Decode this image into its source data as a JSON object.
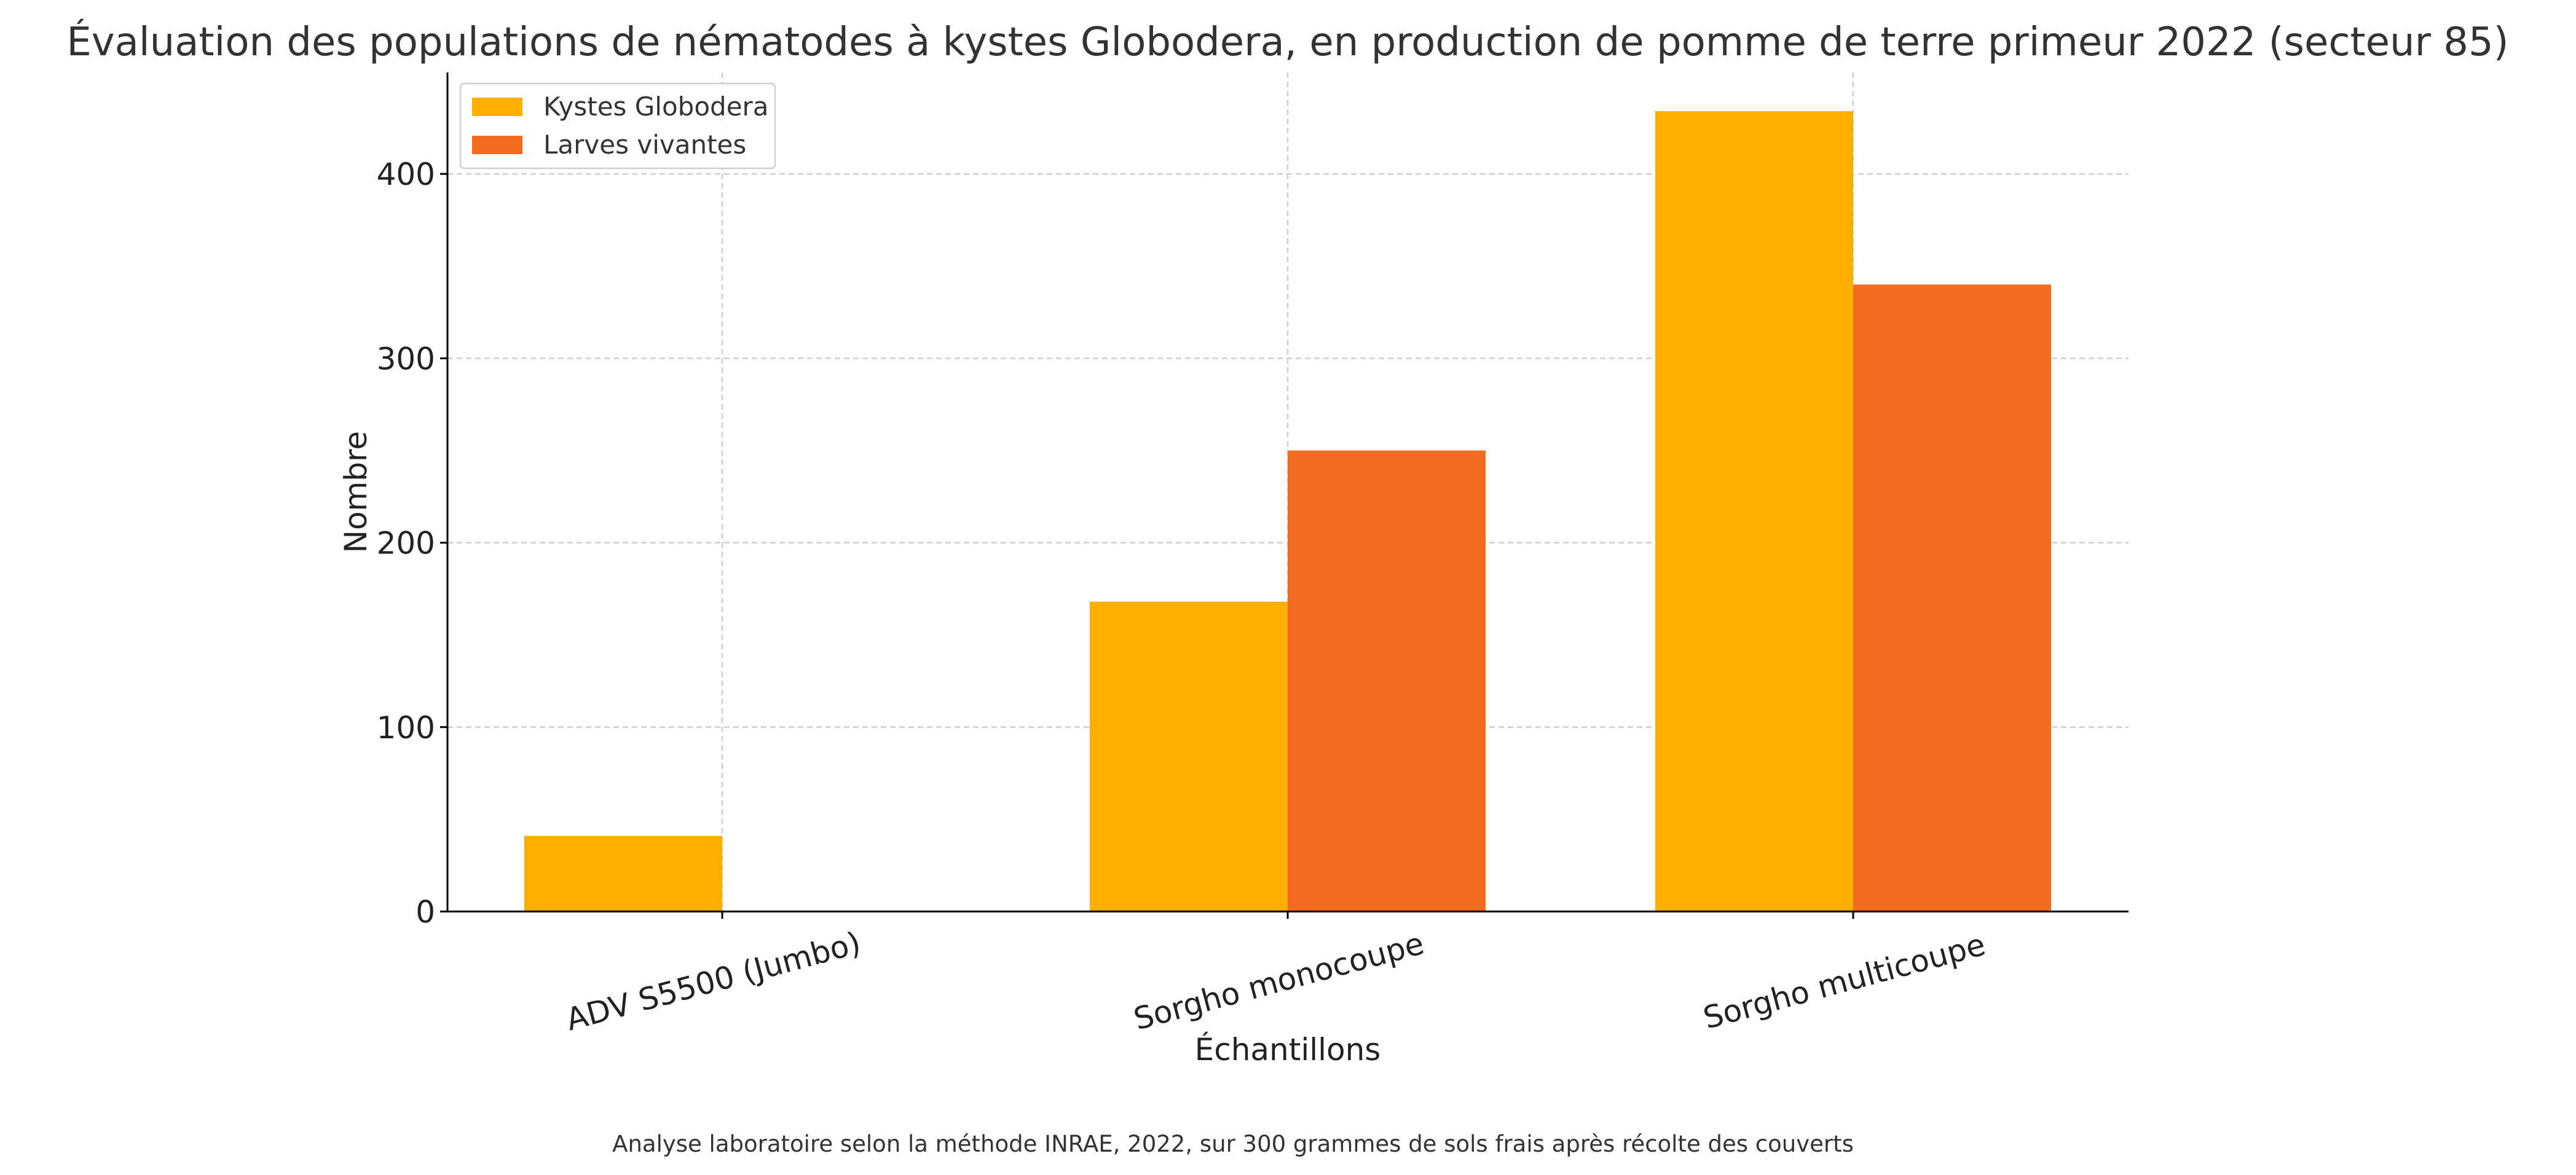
{
  "chart_data": {
    "type": "bar",
    "title": "Évaluation des populations de nématodes à kystes Globodera, en production de pomme de terre primeur 2022 (secteur 85)",
    "xlabel": "Échantillons",
    "ylabel": "Nombre",
    "categories": [
      "ADV S5500 (Jumbo)",
      "Sorgho monocoupe",
      "Sorgho multicoupe"
    ],
    "series": [
      {
        "name": "Kystes Globodera",
        "values": [
          41,
          168,
          434
        ],
        "color": "#FFAF00"
      },
      {
        "name": "Larves vivantes",
        "values": [
          0,
          250,
          340
        ],
        "color": "#F26B21"
      }
    ],
    "ylim": [
      0,
      455
    ],
    "yticks": [
      0,
      100,
      200,
      300,
      400
    ],
    "grid": true,
    "legend": "top-left",
    "caption": "Analyse laboratoire selon la méthode INRAE, 2022, sur 300 grammes de sols frais après récolte des couverts"
  }
}
